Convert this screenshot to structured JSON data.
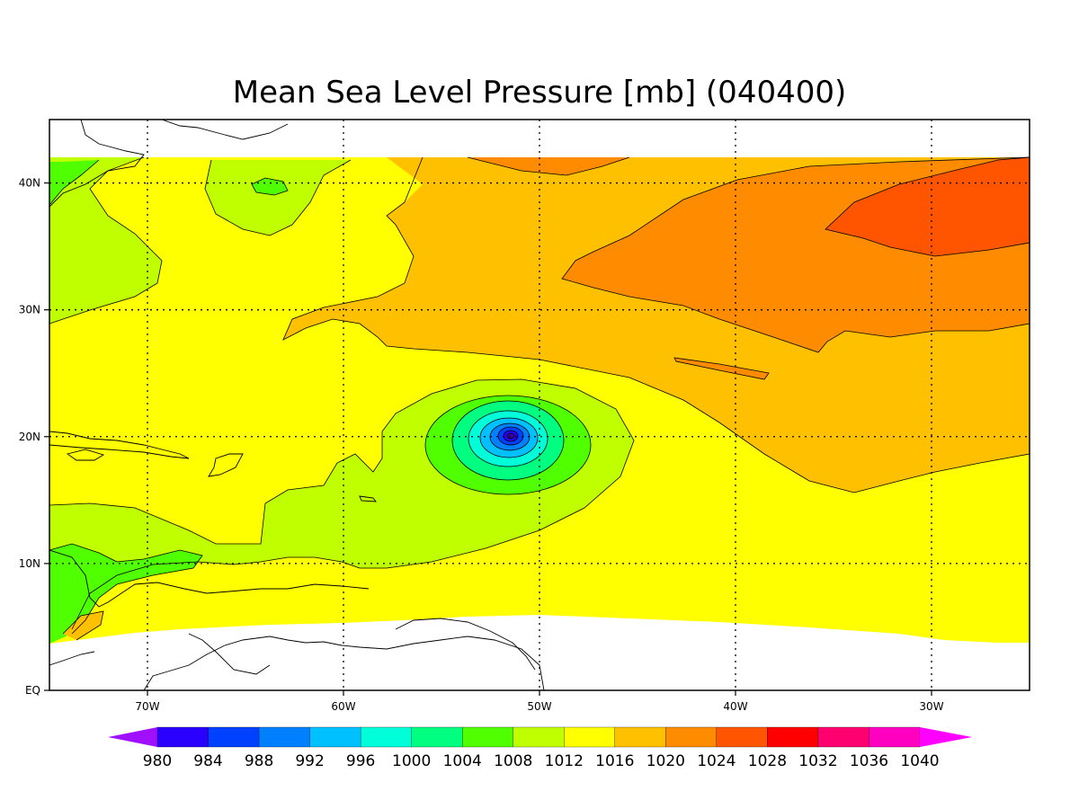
{
  "title": "Mean Sea Level Pressure [mb] (040400)",
  "map": {
    "lon_range": [
      -75,
      -25
    ],
    "lat_range": [
      0,
      45
    ],
    "lon_ticks": [
      {
        "value": -70,
        "label": "70W"
      },
      {
        "value": -60,
        "label": "60W"
      },
      {
        "value": -50,
        "label": "50W"
      },
      {
        "value": -40,
        "label": "40W"
      },
      {
        "value": -30,
        "label": "30W"
      }
    ],
    "lat_ticks": [
      {
        "value": 0,
        "label": "EQ"
      },
      {
        "value": 10,
        "label": "10N"
      },
      {
        "value": 20,
        "label": "20N"
      },
      {
        "value": 30,
        "label": "30N"
      },
      {
        "value": 40,
        "label": "40N"
      }
    ],
    "grid_lons": [
      -70,
      -60,
      -50,
      -40,
      -30
    ],
    "grid_lats": [
      10,
      20,
      30,
      40
    ],
    "data_lat_range": [
      4,
      42
    ],
    "cyclone_center": {
      "lon": -51.5,
      "lat": 20
    }
  },
  "colorbar": {
    "levels": [
      980,
      984,
      988,
      992,
      996,
      1000,
      1004,
      1008,
      1012,
      1016,
      1020,
      1024,
      1028,
      1032,
      1036,
      1040
    ],
    "colors": [
      "#a010ff",
      "#2a00ff",
      "#0040ff",
      "#0080ff",
      "#00c0ff",
      "#00ffd8",
      "#00ff80",
      "#50ff00",
      "#c0ff00",
      "#ffff00",
      "#ffc000",
      "#ff8c00",
      "#ff5500",
      "#ff0000",
      "#ff0070",
      "#ff00c0",
      "#ff00ff"
    ]
  }
}
